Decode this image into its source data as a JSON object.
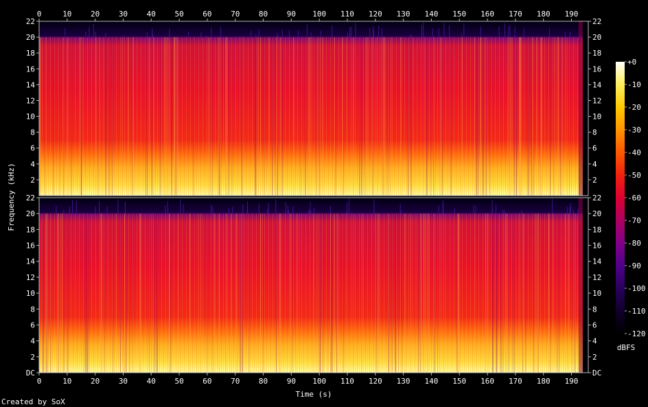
{
  "chart_data": {
    "type": "heatmap",
    "title": "",
    "xlabel": "Time (s)",
    "ylabel": "Frequency (kHz)",
    "x_ticks": [
      0,
      10,
      20,
      30,
      40,
      50,
      60,
      70,
      80,
      90,
      100,
      110,
      120,
      130,
      140,
      150,
      160,
      170,
      180,
      190
    ],
    "xlim": [
      0,
      196
    ],
    "channels": [
      {
        "y_ticks": [
          "2",
          "4",
          "6",
          "8",
          "10",
          "12",
          "14",
          "16",
          "18",
          "20",
          "22"
        ],
        "ylim": [
          0,
          22
        ]
      },
      {
        "y_ticks": [
          "DC",
          "2",
          "4",
          "6",
          "8",
          "10",
          "12",
          "14",
          "16",
          "18",
          "20",
          "22"
        ],
        "ylim": [
          0,
          22
        ]
      }
    ],
    "signal_cutoff_khz": 20,
    "signal_end_s": 194,
    "colorbar": {
      "label": "dBFS",
      "ticks": [
        "+0",
        "-10",
        "-20",
        "-30",
        "-40",
        "-50",
        "-60",
        "-70",
        "-80",
        "-90",
        "-100",
        "-110",
        "-120"
      ],
      "range": [
        -120,
        0
      ],
      "colors": [
        "#000000",
        "#1a0030",
        "#3a0070",
        "#6a0090",
        "#a0007a",
        "#d0003a",
        "#ee1010",
        "#ff5500",
        "#ff9900",
        "#ffcc00",
        "#ffee55",
        "#ffffcc",
        "#ffffff"
      ]
    },
    "footer": "Created by SoX"
  }
}
